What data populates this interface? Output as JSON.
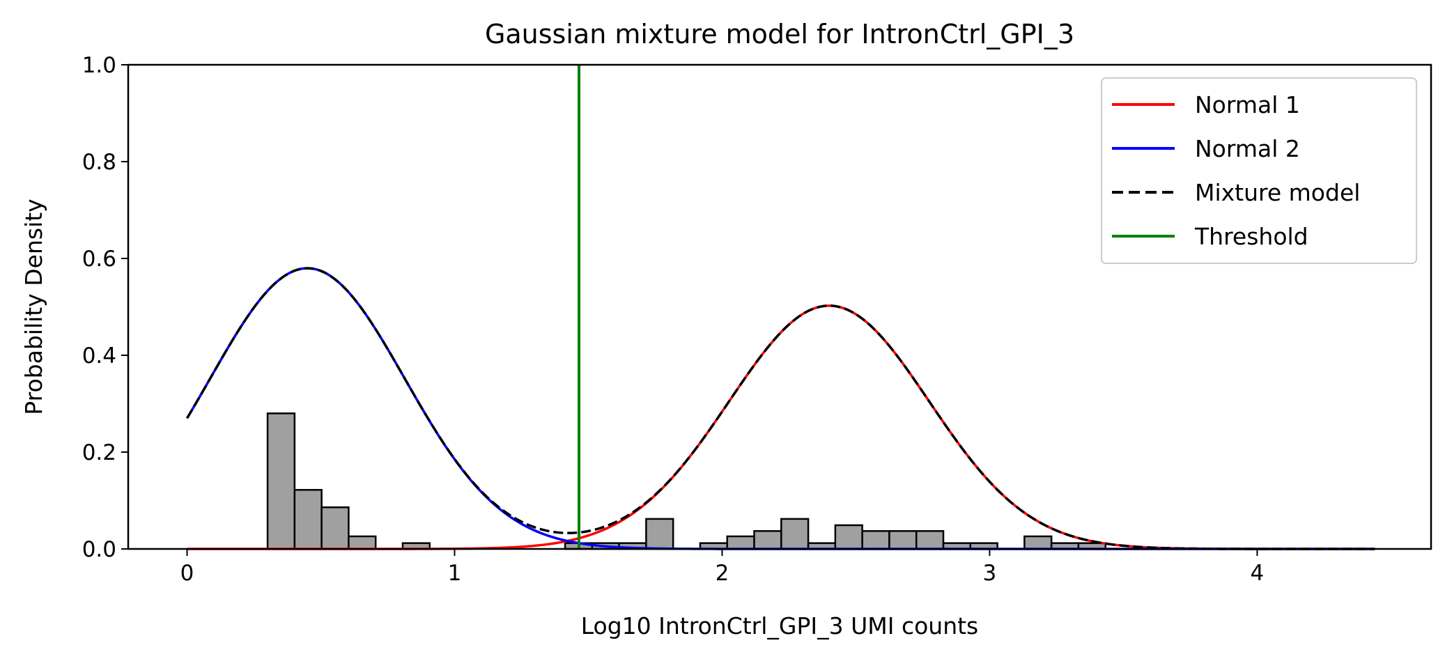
{
  "chart_data": {
    "type": "histogram+line",
    "title": "Gaussian mixture model for IntronCtrl_GPI_3",
    "xlabel": "Log10 IntronCtrl_GPI_3 UMI counts",
    "ylabel": "Probability Density",
    "xlim": [
      -0.22,
      4.65
    ],
    "ylim": [
      0.0,
      1.0
    ],
    "xticks": [
      "0",
      "1",
      "2",
      "3",
      "4"
    ],
    "yticks": [
      "0.0",
      "0.2",
      "0.4",
      "0.6",
      "0.8",
      "1.0"
    ],
    "grid": false,
    "legend_position": "top-right",
    "histogram": {
      "bin_width": 0.101,
      "bar_color": "#a0a0a0",
      "edge_color": "#000000",
      "bins": [
        {
          "x0": 0.301,
          "h": 0.28
        },
        {
          "x0": 0.402,
          "h": 0.122
        },
        {
          "x0": 0.503,
          "h": 0.086
        },
        {
          "x0": 0.604,
          "h": 0.026
        },
        {
          "x0": 0.806,
          "h": 0.012
        },
        {
          "x0": 1.413,
          "h": 0.012
        },
        {
          "x0": 1.514,
          "h": 0.012
        },
        {
          "x0": 1.615,
          "h": 0.012
        },
        {
          "x0": 1.716,
          "h": 0.062
        },
        {
          "x0": 1.918,
          "h": 0.012
        },
        {
          "x0": 2.019,
          "h": 0.026
        },
        {
          "x0": 2.12,
          "h": 0.037
        },
        {
          "x0": 2.221,
          "h": 0.062
        },
        {
          "x0": 2.322,
          "h": 0.012
        },
        {
          "x0": 2.423,
          "h": 0.049
        },
        {
          "x0": 2.524,
          "h": 0.037
        },
        {
          "x0": 2.625,
          "h": 0.037
        },
        {
          "x0": 2.726,
          "h": 0.037
        },
        {
          "x0": 2.827,
          "h": 0.012
        },
        {
          "x0": 2.928,
          "h": 0.012
        },
        {
          "x0": 3.13,
          "h": 0.026
        },
        {
          "x0": 3.231,
          "h": 0.012
        },
        {
          "x0": 3.332,
          "h": 0.012
        }
      ]
    },
    "series": [
      {
        "name": "Normal 1",
        "color": "#ff0000",
        "style": "solid",
        "kind": "gaussian",
        "weight": 0.471,
        "mean": 2.4,
        "sd": 0.374
      },
      {
        "name": "Normal 2",
        "color": "#0000ff",
        "style": "solid",
        "kind": "gaussian",
        "weight": 0.529,
        "mean": 0.45,
        "sd": 0.364
      },
      {
        "name": "Mixture model",
        "color": "#000000",
        "style": "dashed",
        "kind": "sum"
      }
    ],
    "curve_x_range": [
      0.0,
      4.44
    ],
    "threshold": {
      "name": "Threshold",
      "color": "#008000",
      "x": 1.465
    }
  }
}
